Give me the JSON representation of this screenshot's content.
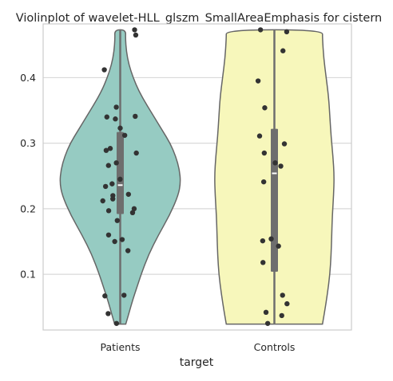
{
  "chart_data": {
    "type": "violin",
    "title": "Violinplot of wavelet-HLL_glszm_SmallAreaEmphasis for cistern",
    "xlabel": "target",
    "ylabel": "",
    "categories": [
      "Patients",
      "Controls"
    ],
    "ylim": [
      0.015,
      0.482
    ],
    "yticks": [
      0.1,
      0.2,
      0.3,
      0.4
    ],
    "ytick_labels": [
      "0.1",
      "0.2",
      "0.3",
      "0.4"
    ],
    "grid": true,
    "colors": {
      "Patients": "#96cbc2",
      "Controls": "#f7f7bb",
      "outline": "#666666",
      "points": "#333333",
      "box": "#6e6e6e",
      "grid": "#d9d9d9",
      "frame": "#cccccc"
    },
    "violins": [
      {
        "category": "Patients",
        "range": [
          0.024,
          0.473
        ],
        "median": 0.236,
        "q1": 0.192,
        "q3": 0.317,
        "whisker": [
          0.024,
          0.473
        ],
        "density_profile": [
          [
            0.024,
            0.09
          ],
          [
            0.04,
            0.14
          ],
          [
            0.06,
            0.2
          ],
          [
            0.08,
            0.27
          ],
          [
            0.1,
            0.34
          ],
          [
            0.13,
            0.46
          ],
          [
            0.16,
            0.62
          ],
          [
            0.19,
            0.8
          ],
          [
            0.22,
            0.94
          ],
          [
            0.24,
            0.98
          ],
          [
            0.26,
            0.96
          ],
          [
            0.28,
            0.9
          ],
          [
            0.3,
            0.81
          ],
          [
            0.32,
            0.68
          ],
          [
            0.34,
            0.55
          ],
          [
            0.36,
            0.42
          ],
          [
            0.38,
            0.3
          ],
          [
            0.4,
            0.21
          ],
          [
            0.42,
            0.14
          ],
          [
            0.44,
            0.1
          ],
          [
            0.46,
            0.085
          ],
          [
            0.473,
            0.09
          ]
        ],
        "points": [
          0.473,
          0.465,
          0.412,
          0.355,
          0.341,
          0.34,
          0.337,
          0.323,
          0.312,
          0.292,
          0.289,
          0.285,
          0.27,
          0.266,
          0.245,
          0.238,
          0.234,
          0.222,
          0.22,
          0.215,
          0.212,
          0.2,
          0.197,
          0.194,
          0.182,
          0.16,
          0.153,
          0.15,
          0.136,
          0.068,
          0.067,
          0.04,
          0.025
        ]
      },
      {
        "category": "Controls",
        "range": [
          0.024,
          0.473
        ],
        "median": 0.254,
        "q1": 0.104,
        "q3": 0.322,
        "whisker": [
          0.024,
          0.473
        ],
        "density_profile": [
          [
            0.024,
            0.78
          ],
          [
            0.04,
            0.81
          ],
          [
            0.07,
            0.86
          ],
          [
            0.1,
            0.9
          ],
          [
            0.13,
            0.92
          ],
          [
            0.16,
            0.93
          ],
          [
            0.19,
            0.94
          ],
          [
            0.22,
            0.96
          ],
          [
            0.25,
            0.97
          ],
          [
            0.28,
            0.95
          ],
          [
            0.31,
            0.92
          ],
          [
            0.34,
            0.9
          ],
          [
            0.37,
            0.88
          ],
          [
            0.4,
            0.84
          ],
          [
            0.43,
            0.8
          ],
          [
            0.46,
            0.78
          ],
          [
            0.473,
            0.78
          ]
        ],
        "points": [
          0.473,
          0.47,
          0.441,
          0.395,
          0.354,
          0.311,
          0.299,
          0.285,
          0.27,
          0.265,
          0.241,
          0.154,
          0.151,
          0.143,
          0.118,
          0.068,
          0.055,
          0.042,
          0.037,
          0.025
        ]
      }
    ]
  }
}
